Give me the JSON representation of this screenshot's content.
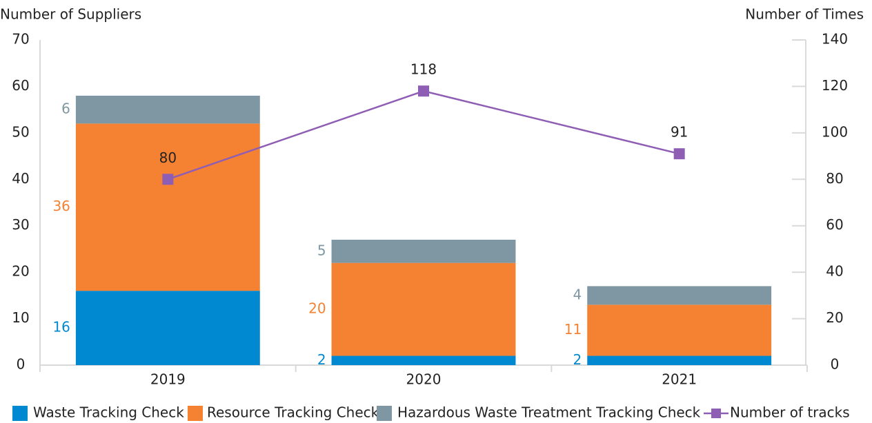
{
  "chart_data": {
    "type": "bar",
    "stacked": true,
    "y_label": "Number of Suppliers",
    "y2_label": "Number of Times",
    "categories": [
      "2019",
      "2020",
      "2021"
    ],
    "series": [
      {
        "name": "Waste Tracking Check",
        "color": "#0088d1",
        "values": [
          16,
          2,
          2
        ]
      },
      {
        "name": "Resource Tracking Check",
        "color": "#f58233",
        "values": [
          36,
          20,
          11
        ]
      },
      {
        "name": "Hazardous Waste Treatment Tracking Check",
        "color": "#7f97a2",
        "values": [
          6,
          5,
          4
        ]
      },
      {
        "name": "Number of tracks",
        "type": "line",
        "axis": "y2",
        "color": "#8e5db4",
        "values": [
          80,
          118,
          91
        ]
      }
    ],
    "ylim": [
      0,
      70
    ],
    "yticks": [
      0,
      10,
      20,
      30,
      40,
      50,
      60,
      70
    ],
    "y2lim": [
      0,
      140
    ],
    "y2ticks": [
      0,
      20,
      40,
      60,
      80,
      100,
      120,
      140
    ],
    "legend": "bottom"
  }
}
